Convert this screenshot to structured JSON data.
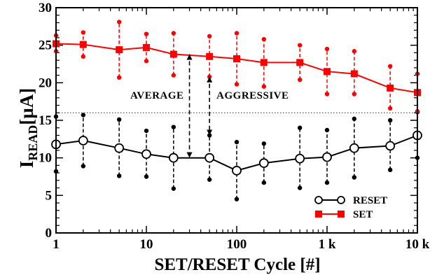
{
  "chart_data": {
    "type": "line",
    "title": "",
    "xlabel": "SET/RESET Cycle [#]",
    "ylabel_main": "I",
    "ylabel_sub": "READ",
    "ylabel_unit": "[µA]",
    "xscale": "log",
    "xlim": [
      1,
      10000
    ],
    "ylim": [
      0,
      30
    ],
    "x_ticks": [
      {
        "value": 1,
        "label": "1"
      },
      {
        "value": 10,
        "label": "10"
      },
      {
        "value": 100,
        "label": "100"
      },
      {
        "value": 1000,
        "label": "1 k"
      },
      {
        "value": 10000,
        "label": "10 k"
      }
    ],
    "y_ticks": [
      {
        "value": 0,
        "label": "0"
      },
      {
        "value": 5,
        "label": "5"
      },
      {
        "value": 10,
        "label": "10"
      },
      {
        "value": 15,
        "label": "15"
      },
      {
        "value": 20,
        "label": "20"
      },
      {
        "value": 25,
        "label": "25"
      },
      {
        "value": 30,
        "label": "30"
      }
    ],
    "threshold_y": 16,
    "grid": false,
    "legend_position": "bottom-right",
    "series": [
      {
        "name": "RESET",
        "color": "#000000",
        "marker": "open-circle",
        "points": [
          {
            "x": 1,
            "y": 11.8,
            "low": 8.2,
            "high": 15.5
          },
          {
            "x": 2,
            "y": 12.3,
            "low": 8.9,
            "high": 15.7
          },
          {
            "x": 5,
            "y": 11.3,
            "low": 7.6,
            "high": 15.1
          },
          {
            "x": 10,
            "y": 10.5,
            "low": 7.5,
            "high": 13.6
          },
          {
            "x": 20,
            "y": 10.0,
            "low": 5.9,
            "high": 14.1
          },
          {
            "x": 50,
            "y": 10.0,
            "low": 7.1,
            "high": 13.0
          },
          {
            "x": 100,
            "y": 8.3,
            "low": 4.5,
            "high": 12.1
          },
          {
            "x": 200,
            "y": 9.3,
            "low": 6.7,
            "high": 11.9
          },
          {
            "x": 500,
            "y": 9.9,
            "low": 6.0,
            "high": 14.0
          },
          {
            "x": 1000,
            "y": 10.1,
            "low": 6.7,
            "high": 13.7
          },
          {
            "x": 2000,
            "y": 11.3,
            "low": 7.4,
            "high": 15.2
          },
          {
            "x": 5000,
            "y": 11.6,
            "low": 8.4,
            "high": 15.0
          },
          {
            "x": 10000,
            "y": 13.0,
            "low": 10.0,
            "high": 16.1
          }
        ]
      },
      {
        "name": "SET",
        "color": "#ff0000",
        "marker": "filled-square",
        "points": [
          {
            "x": 1,
            "y": 25.2,
            "low": 24.2,
            "high": 26.3
          },
          {
            "x": 2,
            "y": 25.1,
            "low": 23.5,
            "high": 26.7
          },
          {
            "x": 5,
            "y": 24.4,
            "low": 20.7,
            "high": 28.1
          },
          {
            "x": 10,
            "y": 24.7,
            "low": 22.9,
            "high": 26.5
          },
          {
            "x": 20,
            "y": 23.8,
            "low": 21.0,
            "high": 26.6
          },
          {
            "x": 50,
            "y": 23.5,
            "low": 20.8,
            "high": 26.2
          },
          {
            "x": 100,
            "y": 23.2,
            "low": 19.8,
            "high": 26.6
          },
          {
            "x": 200,
            "y": 22.7,
            "low": 19.5,
            "high": 25.8
          },
          {
            "x": 500,
            "y": 22.7,
            "low": 20.4,
            "high": 25.0
          },
          {
            "x": 1000,
            "y": 21.5,
            "low": 18.5,
            "high": 24.5
          },
          {
            "x": 2000,
            "y": 21.2,
            "low": 18.5,
            "high": 24.2
          },
          {
            "x": 5000,
            "y": 19.3,
            "low": 16.6,
            "high": 22.2
          },
          {
            "x": 10000,
            "y": 18.7,
            "low": 16.2,
            "high": 21.2
          }
        ]
      }
    ],
    "annotations": [
      {
        "text": "AVERAGE",
        "arrow_x": 30,
        "arrow_from_y": 23.8,
        "arrow_to_y": 10.0
      },
      {
        "text": "AGGRESSIVE",
        "arrow_x": 50,
        "arrow_from_y": 20.8,
        "arrow_to_y": 13.0
      }
    ]
  }
}
